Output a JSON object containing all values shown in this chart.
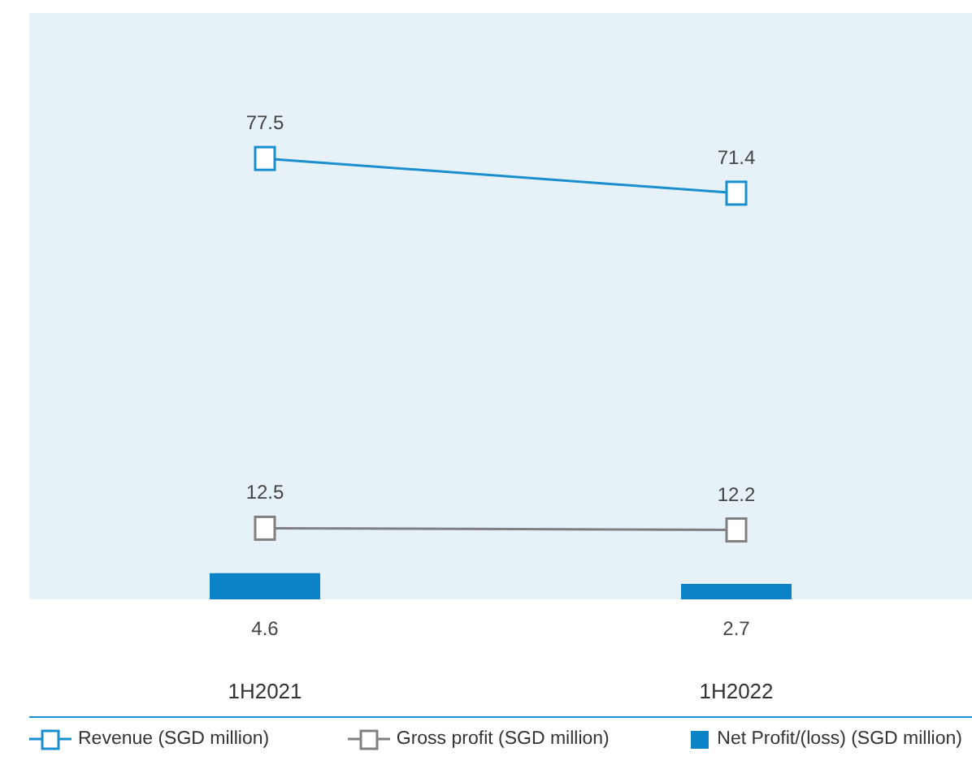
{
  "chart_data": {
    "type": "line",
    "categories": [
      "1H2021",
      "1H2022"
    ],
    "series": [
      {
        "name": "Revenue (SGD million)",
        "color": "#1a8fd0",
        "values": [
          77.5,
          71.4
        ]
      },
      {
        "name": "Gross profit (SGD million)",
        "color": "#808080",
        "values": [
          12.5,
          12.2
        ]
      },
      {
        "name": "Net Profit/(loss) (SGD million)",
        "type": "bar",
        "color": "#0b83c6",
        "values": [
          4.6,
          2.7
        ]
      }
    ],
    "data_labels": true,
    "marker": "square",
    "legend": "bottom",
    "grid": false
  }
}
